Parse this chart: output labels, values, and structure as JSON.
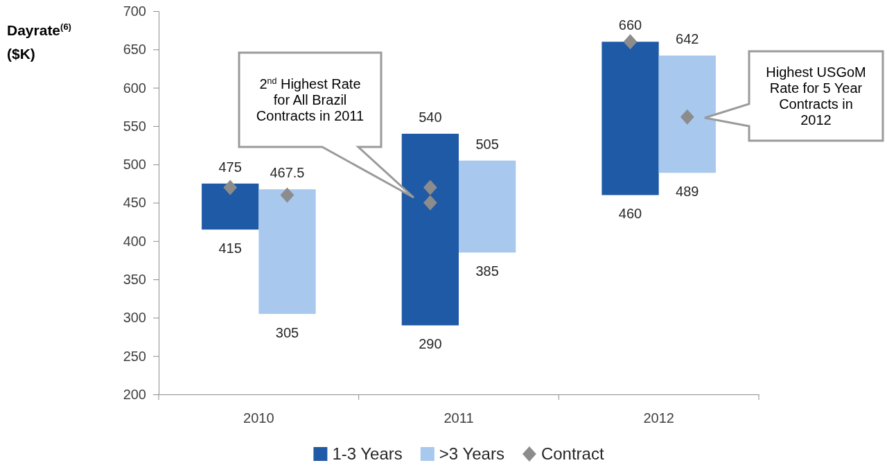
{
  "chart_data": {
    "type": "bar",
    "ylabel": "Dayrate$^{(6)}$ ($K)",
    "categories": [
      "2010",
      "2011",
      "2012"
    ],
    "series": [
      {
        "name": "1-3 Years",
        "color": "#1f5aa6",
        "base": [
          415,
          290,
          460
        ],
        "values": [
          60,
          250,
          200
        ]
      },
      {
        "name": ">3 Years",
        "color": "#a8c8ee",
        "base": [
          305,
          385,
          489
        ],
        "values": [
          162.5,
          120,
          153
        ]
      },
      {
        "name": "Contract",
        "type": "scatter",
        "color": "#8c8c8c",
        "values": [
          470,
          470,
          660
        ]
      },
      {
        "type": "scatter",
        "color": "#8c8c8c",
        "values": [
          460,
          null,
          562
        ]
      },
      {
        "type": "scatter",
        "color": "#8c8c8c",
        "values": [
          null,
          450,
          null
        ]
      }
    ],
    "ylim": [
      200,
      700
    ],
    "yticks": [
      200,
      250,
      300,
      350,
      400,
      450,
      500,
      550,
      600,
      650,
      700
    ],
    "marker": "diamond",
    "legend": "bottom",
    "annotations": [
      "2$^{nd}$ Highest Rate for All Brazil Contracts in 2011",
      "Highest USGoM Rate for 5 Year Contracts in 2012",
      {
        "text": "475",
        "x": "2010",
        "y": 475
      },
      {
        "text": "415",
        "x": "2010",
        "y": 415
      },
      {
        "text": "467.5",
        "x": "2010",
        "y": 467.5
      },
      {
        "text": "305",
        "x": "2010",
        "y": 305
      },
      {
        "text": "540",
        "x": "2011",
        "y": 540
      },
      {
        "text": "290",
        "x": "2011",
        "y": 290
      },
      {
        "text": "505",
        "x": "2011",
        "y": 505
      },
      {
        "text": "385",
        "x": "2011",
        "y": 385
      },
      {
        "text": "660",
        "x": "2012",
        "y": 660
      },
      {
        "text": "460",
        "x": "2012",
        "y": 460
      },
      {
        "text": "642",
        "x": "2012",
        "y": 642
      },
      {
        "text": "489",
        "x": "2012",
        "y": 489
      }
    ]
  }
}
